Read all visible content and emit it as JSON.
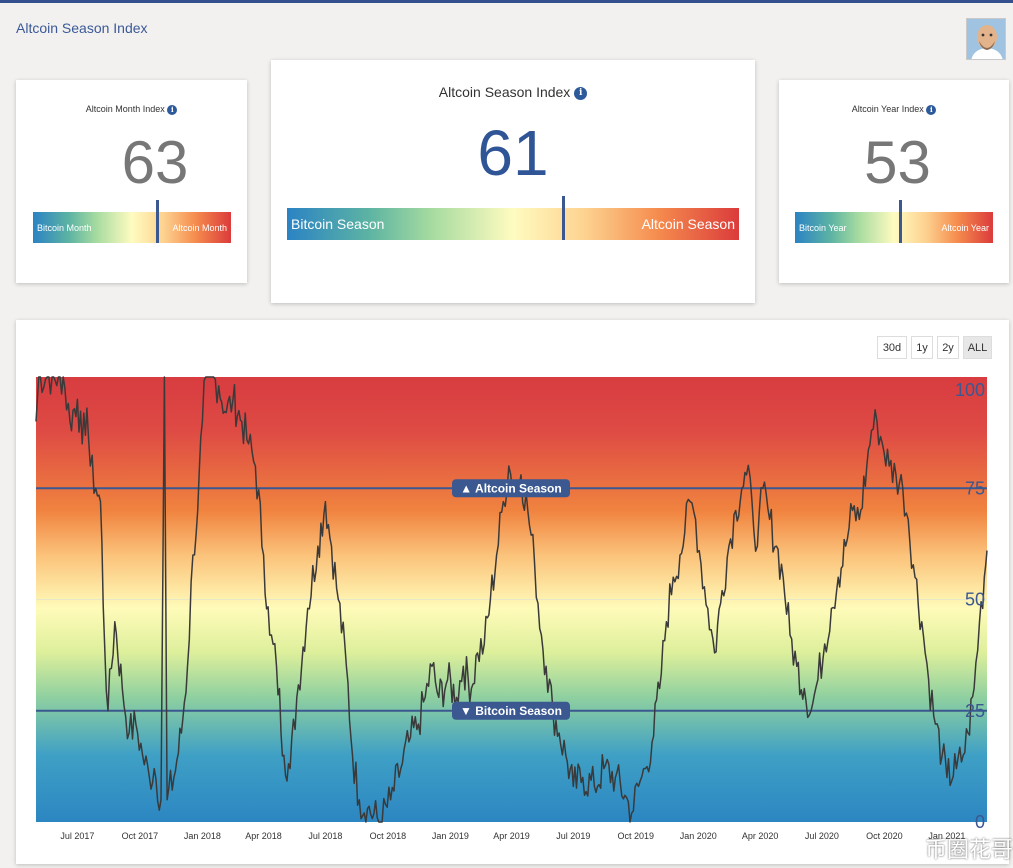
{
  "page": {
    "title": "Altcoin Season Index"
  },
  "month_card": {
    "label": "Altcoin Month Index",
    "value": "63",
    "left_label": "Bitcoin Month",
    "right_label": "Altcoin Month"
  },
  "season_card": {
    "label": "Altcoin Season Index",
    "value": "61",
    "left_label": "Bitcoin Season",
    "right_label": "Altcoin Season"
  },
  "year_card": {
    "label": "Altcoin Year Index",
    "value": "53",
    "left_label": "Bitcoin Year",
    "right_label": "Altcoin Year"
  },
  "range_buttons": [
    "30d",
    "1y",
    "2y",
    "ALL"
  ],
  "active_range": "ALL",
  "watermark": "币圈花哥",
  "colors": {
    "accent": "#3b5890",
    "value_main": "#2f5597",
    "value_side": "#777777"
  },
  "chart_data": {
    "type": "line",
    "ylim": [
      0,
      100
    ],
    "y_ticks": [
      "100",
      "75",
      "50",
      "25",
      "0"
    ],
    "x_ticks": [
      "Jul 2017",
      "Oct 2017",
      "Jan 2018",
      "Apr 2018",
      "Jul 2018",
      "Oct 2018",
      "Jan 2019",
      "Apr 2019",
      "Jul 2019",
      "Oct 2019",
      "Jan 2020",
      "Apr 2020",
      "Jul 2020",
      "Oct 2020",
      "Jan 2021"
    ],
    "x_range": [
      "2017-05-01",
      "2021-03-01"
    ],
    "threshold_lines": [
      {
        "label": "▲ Altcoin Season",
        "value": 75
      },
      {
        "label": "▼ Bitcoin Season",
        "value": 25
      }
    ],
    "series": [
      {
        "points": [
          [
            "2017-05-01",
            90
          ],
          [
            "2017-05-05",
            100
          ],
          [
            "2017-05-20",
            100
          ],
          [
            "2017-06-10",
            100
          ],
          [
            "2017-06-20",
            90
          ],
          [
            "2017-07-01",
            95
          ],
          [
            "2017-07-08",
            85
          ],
          [
            "2017-07-15",
            93
          ],
          [
            "2017-07-20",
            80
          ],
          [
            "2017-07-28",
            75
          ],
          [
            "2017-08-04",
            72
          ],
          [
            "2017-08-10",
            40
          ],
          [
            "2017-08-15",
            25
          ],
          [
            "2017-08-25",
            45
          ],
          [
            "2017-09-05",
            30
          ],
          [
            "2017-09-15",
            20
          ],
          [
            "2017-09-25",
            22
          ],
          [
            "2017-10-05",
            15
          ],
          [
            "2017-10-15",
            10
          ],
          [
            "2017-10-22",
            12
          ],
          [
            "2017-11-01",
            5
          ],
          [
            "2017-11-06",
            100
          ],
          [
            "2017-11-10",
            5
          ],
          [
            "2017-11-20",
            10
          ],
          [
            "2017-12-01",
            20
          ],
          [
            "2017-12-10",
            35
          ],
          [
            "2017-12-18",
            60
          ],
          [
            "2017-12-25",
            70
          ],
          [
            "2018-01-01",
            90
          ],
          [
            "2018-01-06",
            100
          ],
          [
            "2018-01-15",
            100
          ],
          [
            "2018-01-25",
            98
          ],
          [
            "2018-02-05",
            92
          ],
          [
            "2018-02-15",
            95
          ],
          [
            "2018-02-28",
            90
          ],
          [
            "2018-03-10",
            85
          ],
          [
            "2018-03-20",
            80
          ],
          [
            "2018-04-01",
            60
          ],
          [
            "2018-04-10",
            42
          ],
          [
            "2018-04-20",
            35
          ],
          [
            "2018-05-01",
            15
          ],
          [
            "2018-05-10",
            12
          ],
          [
            "2018-05-20",
            28
          ],
          [
            "2018-06-05",
            48
          ],
          [
            "2018-06-20",
            62
          ],
          [
            "2018-07-01",
            72
          ],
          [
            "2018-07-10",
            62
          ],
          [
            "2018-07-20",
            50
          ],
          [
            "2018-08-01",
            35
          ],
          [
            "2018-08-10",
            15
          ],
          [
            "2018-08-20",
            5
          ],
          [
            "2018-09-01",
            3
          ],
          [
            "2018-09-20",
            0
          ],
          [
            "2018-10-05",
            5
          ],
          [
            "2018-10-20",
            12
          ],
          [
            "2018-11-01",
            18
          ],
          [
            "2018-11-15",
            22
          ],
          [
            "2018-11-25",
            28
          ],
          [
            "2018-12-05",
            35
          ],
          [
            "2018-12-15",
            28
          ],
          [
            "2018-12-28",
            32
          ],
          [
            "2019-01-10",
            28
          ],
          [
            "2019-01-20",
            35
          ],
          [
            "2019-02-01",
            30
          ],
          [
            "2019-02-10",
            38
          ],
          [
            "2019-02-20",
            40
          ],
          [
            "2019-03-01",
            50
          ],
          [
            "2019-03-10",
            60
          ],
          [
            "2019-03-20",
            72
          ],
          [
            "2019-03-28",
            80
          ],
          [
            "2019-04-05",
            75
          ],
          [
            "2019-04-15",
            78
          ],
          [
            "2019-04-25",
            70
          ],
          [
            "2019-05-05",
            58
          ],
          [
            "2019-05-15",
            42
          ],
          [
            "2019-05-22",
            35
          ],
          [
            "2019-06-01",
            25
          ],
          [
            "2019-06-10",
            20
          ],
          [
            "2019-06-20",
            15
          ],
          [
            "2019-07-01",
            8
          ],
          [
            "2019-07-15",
            10
          ],
          [
            "2019-08-01",
            8
          ],
          [
            "2019-08-15",
            12
          ],
          [
            "2019-09-01",
            10
          ],
          [
            "2019-09-15",
            6
          ],
          [
            "2019-09-25",
            2
          ],
          [
            "2019-10-05",
            8
          ],
          [
            "2019-10-15",
            12
          ],
          [
            "2019-10-25",
            18
          ],
          [
            "2019-11-05",
            30
          ],
          [
            "2019-11-15",
            45
          ],
          [
            "2019-11-25",
            55
          ],
          [
            "2019-12-05",
            60
          ],
          [
            "2019-12-12",
            65
          ],
          [
            "2019-12-20",
            72
          ],
          [
            "2019-12-28",
            68
          ],
          [
            "2020-01-05",
            58
          ],
          [
            "2020-01-15",
            48
          ],
          [
            "2020-01-25",
            38
          ],
          [
            "2020-02-05",
            52
          ],
          [
            "2020-02-15",
            62
          ],
          [
            "2020-02-25",
            70
          ],
          [
            "2020-03-05",
            75
          ],
          [
            "2020-03-12",
            78
          ],
          [
            "2020-03-20",
            72
          ],
          [
            "2020-03-28",
            62
          ],
          [
            "2020-04-05",
            75
          ],
          [
            "2020-04-15",
            68
          ],
          [
            "2020-04-25",
            62
          ],
          [
            "2020-05-05",
            55
          ],
          [
            "2020-05-15",
            42
          ],
          [
            "2020-05-25",
            35
          ],
          [
            "2020-06-05",
            30
          ],
          [
            "2020-06-15",
            25
          ],
          [
            "2020-06-25",
            32
          ],
          [
            "2020-07-05",
            40
          ],
          [
            "2020-07-15",
            48
          ],
          [
            "2020-07-25",
            55
          ],
          [
            "2020-08-05",
            62
          ],
          [
            "2020-08-15",
            70
          ],
          [
            "2020-08-25",
            68
          ],
          [
            "2020-09-05",
            80
          ],
          [
            "2020-09-12",
            88
          ],
          [
            "2020-09-20",
            90
          ],
          [
            "2020-09-28",
            85
          ],
          [
            "2020-10-08",
            80
          ],
          [
            "2020-10-18",
            78
          ],
          [
            "2020-10-28",
            75
          ],
          [
            "2020-11-05",
            68
          ],
          [
            "2020-11-15",
            55
          ],
          [
            "2020-11-25",
            45
          ],
          [
            "2020-12-05",
            32
          ],
          [
            "2020-12-15",
            22
          ],
          [
            "2020-12-25",
            15
          ],
          [
            "2021-01-01",
            10
          ],
          [
            "2021-01-15",
            12
          ],
          [
            "2021-01-25",
            15
          ],
          [
            "2021-02-01",
            20
          ],
          [
            "2021-02-10",
            30
          ],
          [
            "2021-02-18",
            45
          ],
          [
            "2021-02-25",
            55
          ],
          [
            "2021-03-01",
            61
          ]
        ]
      }
    ]
  }
}
